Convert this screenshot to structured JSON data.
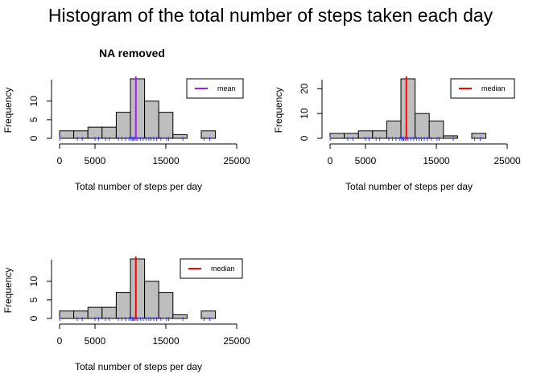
{
  "page": {
    "title": "Histogram of the total number of steps taken each day"
  },
  "chart_data": [
    {
      "type": "bar",
      "title": "NA removed",
      "xlabel": "Total number of steps per day",
      "ylabel": "Frequency",
      "bin_edges": [
        0,
        2000,
        4000,
        6000,
        8000,
        10000,
        12000,
        14000,
        16000,
        18000,
        20000,
        22000
      ],
      "values": [
        2,
        2,
        3,
        3,
        7,
        16,
        10,
        7,
        1,
        0,
        2
      ],
      "x_ticks": [
        "0",
        "5000",
        "15000",
        "25000"
      ],
      "x_tick_values": [
        0,
        5000,
        15000,
        25000
      ],
      "xlim": [
        0,
        25000
      ],
      "y_ticks": [
        "0",
        "5",
        "10"
      ],
      "y_tick_values": [
        0,
        5,
        10
      ],
      "ylim": [
        0,
        16
      ],
      "vline": {
        "value": 10766,
        "color": "#a020f0"
      },
      "legend": {
        "label": "mean",
        "color": "#a020f0",
        "position": "top-right"
      },
      "rug": [
        0,
        2500,
        3200,
        5000,
        5500,
        6500,
        7000,
        8300,
        8800,
        9300,
        9800,
        10100,
        10300,
        10400,
        10600,
        10800,
        11000,
        11400,
        11800,
        12200,
        12600,
        12900,
        13300,
        13700,
        14300,
        15100,
        15400,
        17400,
        20400,
        21200
      ]
    },
    {
      "type": "bar",
      "title": "",
      "xlabel": "Total number of steps per day",
      "ylabel": "Frequency",
      "bin_edges": [
        0,
        2000,
        4000,
        6000,
        8000,
        10000,
        12000,
        14000,
        16000,
        18000,
        20000,
        22000
      ],
      "values": [
        2,
        2,
        3,
        3,
        7,
        24,
        10,
        7,
        1,
        0,
        2
      ],
      "x_ticks": [
        "0",
        "5000",
        "15000",
        "25000"
      ],
      "x_tick_values": [
        0,
        5000,
        15000,
        25000
      ],
      "xlim": [
        0,
        25000
      ],
      "y_ticks": [
        "0",
        "10",
        "20"
      ],
      "y_tick_values": [
        0,
        10,
        20
      ],
      "ylim": [
        0,
        24
      ],
      "vline": {
        "value": 10766,
        "color": "#ff0000"
      },
      "legend": {
        "label": "median",
        "color": "#ff0000",
        "position": "top-right"
      },
      "rug": [
        0,
        2500,
        3200,
        5000,
        5500,
        6500,
        7000,
        8300,
        8800,
        9300,
        9800,
        10100,
        10300,
        10400,
        10600,
        10800,
        11000,
        11400,
        11800,
        12200,
        12600,
        12900,
        13300,
        13700,
        14300,
        15100,
        15400,
        17400,
        20400,
        21200
      ]
    },
    {
      "type": "bar",
      "title": "",
      "xlabel": "Total number of steps per day",
      "ylabel": "Frequency",
      "bin_edges": [
        0,
        2000,
        4000,
        6000,
        8000,
        10000,
        12000,
        14000,
        16000,
        18000,
        20000,
        22000
      ],
      "values": [
        2,
        2,
        3,
        3,
        7,
        16,
        10,
        7,
        1,
        0,
        2
      ],
      "x_ticks": [
        "0",
        "5000",
        "15000",
        "25000"
      ],
      "x_tick_values": [
        0,
        5000,
        15000,
        25000
      ],
      "xlim": [
        0,
        25000
      ],
      "y_ticks": [
        "0",
        "5",
        "10"
      ],
      "y_tick_values": [
        0,
        5,
        10
      ],
      "ylim": [
        0,
        16
      ],
      "vline": {
        "value": 10766,
        "color": "#ff0000"
      },
      "legend": {
        "label": "median",
        "color": "#ff0000",
        "position": "top-right"
      },
      "rug": [
        0,
        2500,
        3200,
        5000,
        5500,
        6500,
        7000,
        8300,
        8800,
        9300,
        9800,
        10100,
        10300,
        10400,
        10600,
        10800,
        11000,
        11400,
        11800,
        12200,
        12600,
        12900,
        13300,
        13700,
        14300,
        15100,
        15400,
        17400,
        20400,
        21200
      ]
    }
  ]
}
